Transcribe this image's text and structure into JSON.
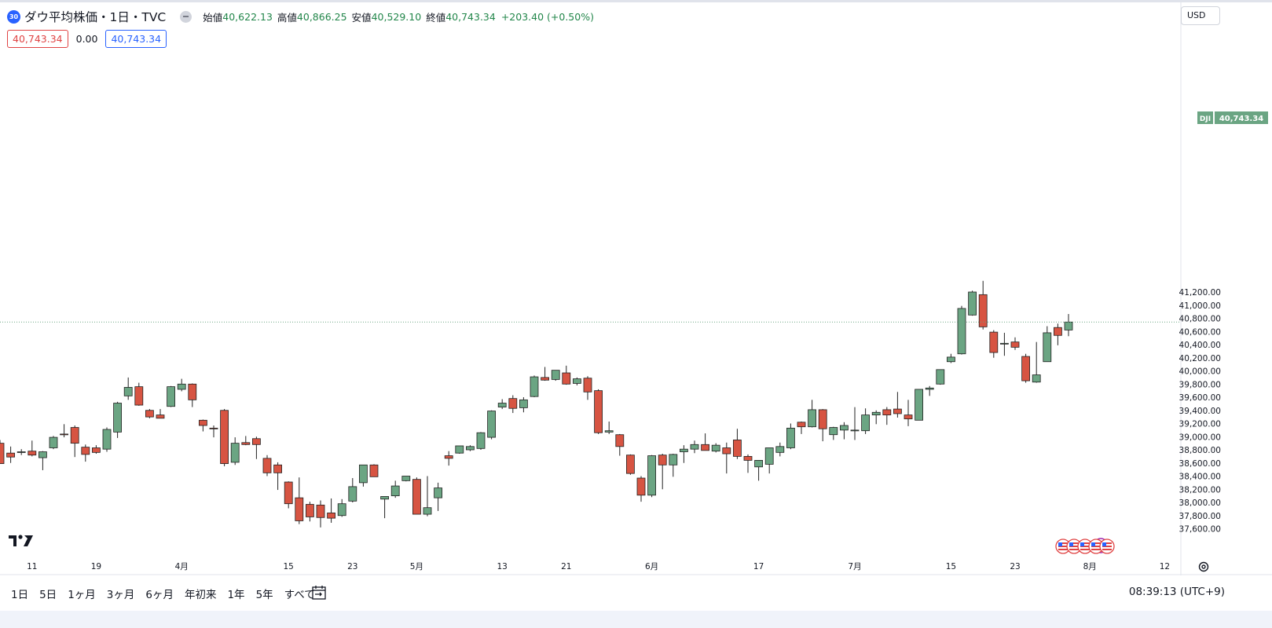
{
  "legend": {
    "badge": "30",
    "symbol_title": "ダウ平均株価・1日・TVC",
    "open_label": "始値",
    "open": "40,622.13",
    "high_label": "高値",
    "high": "40,866.25",
    "low_label": "安値",
    "low": "40,529.10",
    "close_label": "終値",
    "close": "40,743.34",
    "change": "+203.40 (+0.50%)"
  },
  "price_tags": {
    "sell": "40,743.34",
    "spread": "0.00",
    "buy": "40,743.34"
  },
  "currency": "USD",
  "last_price_label": {
    "symbol": "DJI",
    "price": "40,743.34"
  },
  "bottom_bar": {
    "ranges": [
      "1日",
      "5日",
      "1ヶ月",
      "3ヶ月",
      "6ヶ月",
      "年初来",
      "1年",
      "5年",
      "すべて"
    ],
    "clock": "08:39:13 (UTC+9)"
  },
  "colors": {
    "up": "#6ba583",
    "down": "#d75442",
    "border": "#222222",
    "grid_axis": "#b2b5be",
    "last_price": "#6ba583"
  },
  "icons": {
    "logo": "tradingview-logo-icon",
    "goto_date": "calendar-arrow-icon",
    "axis_settings": "gear-icon",
    "event": "lightning-icon",
    "flags": "us-flag-icon"
  },
  "chart_data": {
    "type": "candlestick",
    "symbol": "DJI",
    "y_ticks": [
      37600,
      37800,
      38000,
      38200,
      38400,
      38600,
      38800,
      39000,
      39200,
      39400,
      39600,
      39800,
      40000,
      40200,
      40400,
      40600,
      40800,
      41000,
      41200
    ],
    "x_ticks": [
      {
        "label": "11",
        "bar": 3
      },
      {
        "label": "19",
        "bar": 9
      },
      {
        "label": "4月",
        "bar": 17
      },
      {
        "label": "15",
        "bar": 27
      },
      {
        "label": "23",
        "bar": 33
      },
      {
        "label": "5月",
        "bar": 39
      },
      {
        "label": "13",
        "bar": 47
      },
      {
        "label": "21",
        "bar": 53
      },
      {
        "label": "6月",
        "bar": 61
      },
      {
        "label": "17",
        "bar": 71
      },
      {
        "label": "7月",
        "bar": 80
      },
      {
        "label": "15",
        "bar": 89
      },
      {
        "label": "23",
        "bar": 95
      },
      {
        "label": "8月",
        "bar": 102
      },
      {
        "label": "12",
        "bar": 109
      }
    ],
    "last_price": 40743.34,
    "candles": [
      {
        "o": 38900,
        "h": 38950,
        "l": 38590,
        "c": 38590
      },
      {
        "o": 38750,
        "h": 38850,
        "l": 38600,
        "c": 38690
      },
      {
        "o": 38770,
        "h": 38810,
        "l": 38720,
        "c": 38770
      },
      {
        "o": 38780,
        "h": 38940,
        "l": 38700,
        "c": 38720
      },
      {
        "o": 38680,
        "h": 38780,
        "l": 38490,
        "c": 38770
      },
      {
        "o": 38830,
        "h": 39010,
        "l": 38810,
        "c": 38990
      },
      {
        "o": 39040,
        "h": 39190,
        "l": 38990,
        "c": 39030
      },
      {
        "o": 39140,
        "h": 39170,
        "l": 38690,
        "c": 38900
      },
      {
        "o": 38840,
        "h": 38880,
        "l": 38620,
        "c": 38730
      },
      {
        "o": 38830,
        "h": 38870,
        "l": 38740,
        "c": 38760
      },
      {
        "o": 38810,
        "h": 39140,
        "l": 38770,
        "c": 39110
      },
      {
        "o": 39070,
        "h": 39530,
        "l": 38980,
        "c": 39510
      },
      {
        "o": 39620,
        "h": 39900,
        "l": 39560,
        "c": 39750
      },
      {
        "o": 39760,
        "h": 39820,
        "l": 39470,
        "c": 39480
      },
      {
        "o": 39400,
        "h": 39420,
        "l": 39280,
        "c": 39300
      },
      {
        "o": 39330,
        "h": 39420,
        "l": 39280,
        "c": 39280
      },
      {
        "o": 39460,
        "h": 39770,
        "l": 39450,
        "c": 39760
      },
      {
        "o": 39720,
        "h": 39880,
        "l": 39690,
        "c": 39800
      },
      {
        "o": 39800,
        "h": 39810,
        "l": 39450,
        "c": 39560
      },
      {
        "o": 39250,
        "h": 39260,
        "l": 39080,
        "c": 39170
      },
      {
        "o": 39130,
        "h": 39170,
        "l": 38990,
        "c": 39120
      },
      {
        "o": 39400,
        "h": 39420,
        "l": 38550,
        "c": 38590
      },
      {
        "o": 38610,
        "h": 38990,
        "l": 38570,
        "c": 38900
      },
      {
        "o": 38910,
        "h": 39010,
        "l": 38870,
        "c": 38880
      },
      {
        "o": 38970,
        "h": 39000,
        "l": 38660,
        "c": 38880
      },
      {
        "o": 38670,
        "h": 38720,
        "l": 38400,
        "c": 38450
      },
      {
        "o": 38570,
        "h": 38610,
        "l": 38190,
        "c": 38450
      },
      {
        "o": 38310,
        "h": 38320,
        "l": 37910,
        "c": 37980
      },
      {
        "o": 38070,
        "h": 38380,
        "l": 37670,
        "c": 37720
      },
      {
        "o": 37970,
        "h": 38010,
        "l": 37710,
        "c": 37780
      },
      {
        "o": 37960,
        "h": 38030,
        "l": 37620,
        "c": 37770
      },
      {
        "o": 37840,
        "h": 38060,
        "l": 37690,
        "c": 37760
      },
      {
        "o": 37800,
        "h": 38050,
        "l": 37780,
        "c": 37980
      },
      {
        "o": 38020,
        "h": 38370,
        "l": 38000,
        "c": 38240
      },
      {
        "o": 38300,
        "h": 38570,
        "l": 38240,
        "c": 38570
      },
      {
        "o": 38570,
        "h": 38580,
        "l": 38400,
        "c": 38390
      },
      {
        "o": 38050,
        "h": 38070,
        "l": 37760,
        "c": 38090
      },
      {
        "o": 38100,
        "h": 38330,
        "l": 38070,
        "c": 38250
      },
      {
        "o": 38330,
        "h": 38380,
        "l": 38320,
        "c": 38400
      },
      {
        "o": 38350,
        "h": 38380,
        "l": 37820,
        "c": 37820
      },
      {
        "o": 37820,
        "h": 38400,
        "l": 37790,
        "c": 37920
      },
      {
        "o": 38070,
        "h": 38300,
        "l": 37870,
        "c": 38220
      },
      {
        "o": 38710,
        "h": 38780,
        "l": 38560,
        "c": 38670
      },
      {
        "o": 38750,
        "h": 38850,
        "l": 38740,
        "c": 38860
      },
      {
        "o": 38800,
        "h": 38870,
        "l": 38780,
        "c": 38850
      },
      {
        "o": 38820,
        "h": 39070,
        "l": 38800,
        "c": 39060
      },
      {
        "o": 38990,
        "h": 39400,
        "l": 38960,
        "c": 39390
      },
      {
        "o": 39450,
        "h": 39570,
        "l": 39420,
        "c": 39510
      },
      {
        "o": 39580,
        "h": 39630,
        "l": 39360,
        "c": 39430
      },
      {
        "o": 39440,
        "h": 39600,
        "l": 39370,
        "c": 39560
      },
      {
        "o": 39610,
        "h": 39930,
        "l": 39600,
        "c": 39910
      },
      {
        "o": 39900,
        "h": 40060,
        "l": 39850,
        "c": 39860
      },
      {
        "o": 39870,
        "h": 40010,
        "l": 39850,
        "c": 40010
      },
      {
        "o": 39970,
        "h": 40080,
        "l": 39790,
        "c": 39800
      },
      {
        "o": 39810,
        "h": 39900,
        "l": 39780,
        "c": 39880
      },
      {
        "o": 39890,
        "h": 39920,
        "l": 39560,
        "c": 39680
      },
      {
        "o": 39700,
        "h": 39720,
        "l": 39040,
        "c": 39060
      },
      {
        "o": 39070,
        "h": 39230,
        "l": 39040,
        "c": 39090
      },
      {
        "o": 39030,
        "h": 39040,
        "l": 38710,
        "c": 38850
      },
      {
        "o": 38720,
        "h": 38730,
        "l": 38420,
        "c": 38440
      },
      {
        "o": 38370,
        "h": 38400,
        "l": 38010,
        "c": 38110
      },
      {
        "o": 38110,
        "h": 38720,
        "l": 38080,
        "c": 38710
      },
      {
        "o": 38720,
        "h": 38740,
        "l": 38200,
        "c": 38570
      },
      {
        "o": 38570,
        "h": 38740,
        "l": 38390,
        "c": 38730
      },
      {
        "o": 38770,
        "h": 38870,
        "l": 38600,
        "c": 38810
      },
      {
        "o": 38810,
        "h": 38940,
        "l": 38750,
        "c": 38880
      },
      {
        "o": 38880,
        "h": 39050,
        "l": 38820,
        "c": 38790
      },
      {
        "o": 38780,
        "h": 38900,
        "l": 38760,
        "c": 38870
      },
      {
        "o": 38830,
        "h": 38910,
        "l": 38440,
        "c": 38740
      },
      {
        "o": 38950,
        "h": 39120,
        "l": 38660,
        "c": 38700
      },
      {
        "o": 38700,
        "h": 38730,
        "l": 38450,
        "c": 38640
      },
      {
        "o": 38540,
        "h": 38610,
        "l": 38330,
        "c": 38640
      },
      {
        "o": 38580,
        "h": 38800,
        "l": 38440,
        "c": 38830
      },
      {
        "o": 38760,
        "h": 38910,
        "l": 38700,
        "c": 38850
      },
      {
        "o": 38830,
        "h": 39200,
        "l": 38810,
        "c": 39130
      },
      {
        "o": 39220,
        "h": 39230,
        "l": 39040,
        "c": 39150
      },
      {
        "o": 39150,
        "h": 39560,
        "l": 39140,
        "c": 39410
      },
      {
        "o": 39410,
        "h": 39420,
        "l": 38930,
        "c": 39120
      },
      {
        "o": 39030,
        "h": 39150,
        "l": 38950,
        "c": 39140
      },
      {
        "o": 39100,
        "h": 39220,
        "l": 38960,
        "c": 39170
      },
      {
        "o": 39100,
        "h": 39450,
        "l": 38950,
        "c": 39100
      },
      {
        "o": 39090,
        "h": 39430,
        "l": 39040,
        "c": 39330
      },
      {
        "o": 39330,
        "h": 39400,
        "l": 39190,
        "c": 39370
      },
      {
        "o": 39410,
        "h": 39450,
        "l": 39180,
        "c": 39330
      },
      {
        "o": 39420,
        "h": 39680,
        "l": 39290,
        "c": 39350
      },
      {
        "o": 39330,
        "h": 39560,
        "l": 39160,
        "c": 39270
      },
      {
        "o": 39250,
        "h": 39720,
        "l": 39250,
        "c": 39720
      },
      {
        "o": 39720,
        "h": 39770,
        "l": 39620,
        "c": 39740
      },
      {
        "o": 39800,
        "h": 40020,
        "l": 39790,
        "c": 40020
      },
      {
        "o": 40140,
        "h": 40260,
        "l": 40120,
        "c": 40210
      },
      {
        "o": 40260,
        "h": 40990,
        "l": 40250,
        "c": 40950
      },
      {
        "o": 40850,
        "h": 41220,
        "l": 40840,
        "c": 41200
      },
      {
        "o": 41160,
        "h": 41370,
        "l": 40630,
        "c": 40670
      },
      {
        "o": 40590,
        "h": 40620,
        "l": 40200,
        "c": 40280
      },
      {
        "o": 40420,
        "h": 40580,
        "l": 40230,
        "c": 40420
      },
      {
        "o": 40440,
        "h": 40510,
        "l": 40320,
        "c": 40360
      },
      {
        "o": 40220,
        "h": 40260,
        "l": 39820,
        "c": 39850
      },
      {
        "o": 39830,
        "h": 40440,
        "l": 39820,
        "c": 39940
      },
      {
        "o": 40140,
        "h": 40680,
        "l": 40140,
        "c": 40580
      },
      {
        "o": 40660,
        "h": 40720,
        "l": 40390,
        "c": 40540
      },
      {
        "o": 40622.13,
        "h": 40866.25,
        "l": 40529.1,
        "c": 40743.34
      }
    ]
  }
}
